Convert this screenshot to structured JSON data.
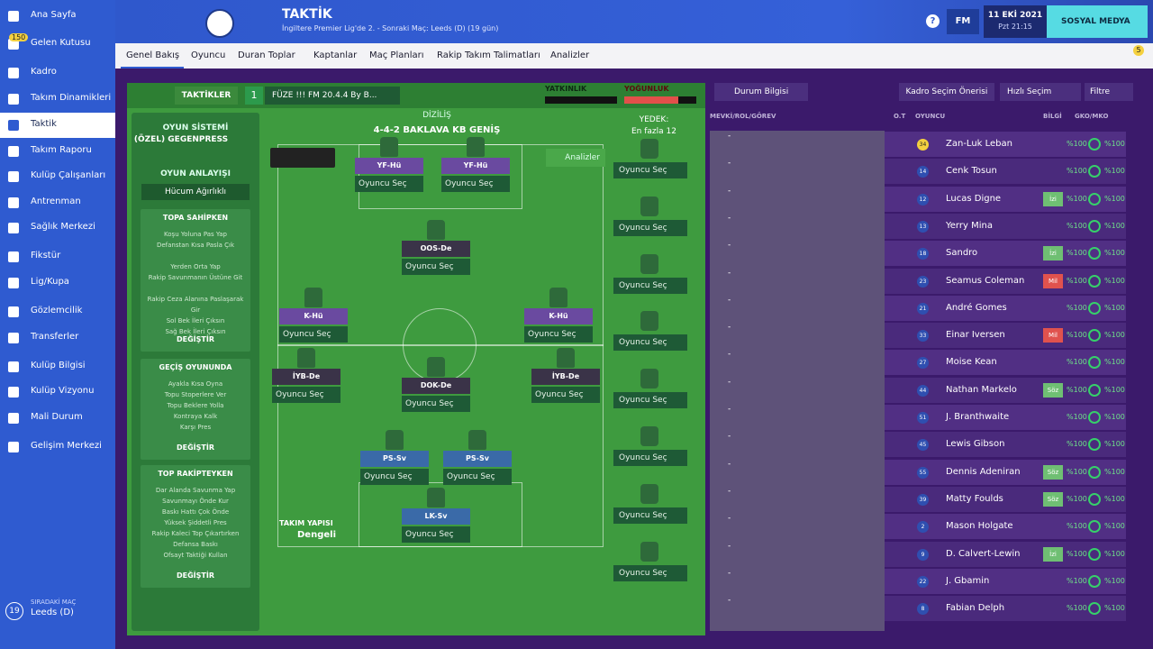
{
  "sidebar": {
    "items": [
      "Ana Sayfa",
      "Gelen Kutusu",
      "Kadro",
      "Takım Dinamikleri",
      "Taktik",
      "Takım Raporu",
      "Kulüp Çalışanları",
      "Antrenman",
      "Sağlık Merkezi",
      "Fikstür",
      "Lig/Kupa",
      "Gözlemcilik",
      "Transferler",
      "Kulüp Bilgisi",
      "Kulüp Vizyonu",
      "Mali Durum",
      "Gelişim Merkezi"
    ],
    "badge": "150",
    "next_label": "SIRADAKİ MAÇ",
    "next_match": "Leeds (D)",
    "next_days": "19"
  },
  "header": {
    "title": "TAKTİK",
    "subtitle": "İngiltere Premier Lig'de 2. - Sonraki Maç: Leeds (D) (19 gün)",
    "help": "?",
    "fm": "FM",
    "date": "11 EKİ 2021",
    "time": "Pzt 21:15",
    "social": "SOSYAL MEDYA",
    "notif": "5"
  },
  "tabs": [
    "Genel Bakış",
    "Oyuncu",
    "Duran Toplar",
    "Kaptanlar",
    "Maç Planları",
    "Rakip Takım Talimatları",
    "Analizler"
  ],
  "tactic_bar": {
    "tactics": "TAKTİKLER",
    "slot": "1",
    "name": "FÜZE !!! FM 20.4.4 By B...",
    "familiarity": "YATKINLIK",
    "intensity": "YOĞUNLUK"
  },
  "left_panel": {
    "system_label": "OYUN SİSTEMİ",
    "system": "(ÖZEL) GEGENPRESS",
    "mentality_label": "OYUN ANLAYIŞI",
    "mentality": "Hücum Ağırlıklı",
    "sections": [
      {
        "title": "TOPA SAHİPKEN",
        "items": [
          "Koşu Yoluna Pas Yap",
          "Defanstan Kısa Pasla Çık",
          "Yerden Orta Yap",
          "Rakip Savunmanın Üstüne Git",
          "Rakip Ceza Alanına Paslaşarak Gir",
          "Sol Bek İleri Çıksın",
          "Sağ Bek İleri Çıksın"
        ],
        "button": "DEĞİŞTİR"
      },
      {
        "title": "GEÇİŞ OYUNUNDA",
        "items": [
          "Ayakla Kısa Oyna",
          "Topu Stoperlere Ver",
          "Topu Beklere Yolla",
          "Kontraya Kalk",
          "Karşı Pres"
        ],
        "button": "DEĞİŞTİR"
      },
      {
        "title": "TOP RAKİPTEYKEN",
        "items": [
          "Dar Alanda Savunma Yap",
          "Savunmayı Önde Kur",
          "Baskı Hattı Çok Önde",
          "Yüksek Şiddetli Pres",
          "Rakip Kaleci Top Çıkartırken",
          "Defansa Baskı",
          "Ofsayt Taktiği Kullan"
        ],
        "button": "DEĞİŞTİR"
      }
    ]
  },
  "pitch": {
    "formation_label": "DİZİLİŞ",
    "formation": "4-4-2 BAKLAVA KB GENİŞ",
    "analysis": "Analizler",
    "structure_label": "TAKIM YAPISI",
    "structure": "Dengeli",
    "positions": [
      {
        "role": "YF-Hü",
        "select": "Oyuncu Seç"
      },
      {
        "role": "YF-Hü",
        "select": "Oyuncu Seç"
      },
      {
        "role": "OOS-De",
        "select": "Oyuncu Seç"
      },
      {
        "role": "K-Hü",
        "select": "Oyuncu Seç"
      },
      {
        "role": "K-Hü",
        "select": "Oyuncu Seç"
      },
      {
        "role": "İYB-De",
        "select": "Oyuncu Seç"
      },
      {
        "role": "DOK-De",
        "select": "Oyuncu Seç"
      },
      {
        "role": "İYB-De",
        "select": "Oyuncu Seç"
      },
      {
        "role": "PS-Sv",
        "select": "Oyuncu Seç"
      },
      {
        "role": "PS-Sv",
        "select": "Oyuncu Seç"
      },
      {
        "role": "LK-Sv",
        "select": "Oyuncu Seç"
      }
    ]
  },
  "subs": {
    "label": "YEDEK:",
    "limit": "En fazla 12",
    "slots": [
      "Oyuncu Seç",
      "Oyuncu Seç",
      "Oyuncu Seç",
      "Oyuncu Seç",
      "Oyuncu Seç",
      "Oyuncu Seç",
      "Oyuncu Seç",
      "Oyuncu Seç"
    ]
  },
  "squad": {
    "view": "Durum Bilgisi",
    "suggest": "Kadro Seçim Önerisi",
    "quick": "Hızlı Seçim",
    "filter": "Filtre",
    "columns": [
      "MEVKİ/ROL/GÖREV",
      "O.T",
      "OYUNCU",
      "BİLGİ",
      "GKO/MKO"
    ],
    "players": [
      {
        "pos": "-",
        "num": "34",
        "name": "Zan-Luk Leban",
        "info": null,
        "gko": "%100",
        "mko": "%100"
      },
      {
        "pos": "-",
        "num": "14",
        "name": "Cenk Tosun",
        "info": null,
        "gko": "%100",
        "mko": "%100"
      },
      {
        "pos": "-",
        "num": "12",
        "name": "Lucas Digne",
        "info": "İzi",
        "gko": "%100",
        "mko": "%100"
      },
      {
        "pos": "-",
        "num": "13",
        "name": "Yerry Mina",
        "info": null,
        "gko": "%100",
        "mko": "%100"
      },
      {
        "pos": "-",
        "num": "18",
        "name": "Sandro",
        "info": "İzi",
        "gko": "%100",
        "mko": "%100"
      },
      {
        "pos": "-",
        "num": "23",
        "name": "Seamus Coleman",
        "info": "Mil",
        "gko": "%100",
        "mko": "%100"
      },
      {
        "pos": "-",
        "num": "21",
        "name": "André Gomes",
        "info": null,
        "gko": "%100",
        "mko": "%100"
      },
      {
        "pos": "-",
        "num": "33",
        "name": "Einar Iversen",
        "info": "Mil",
        "gko": "%100",
        "mko": "%100"
      },
      {
        "pos": "-",
        "num": "27",
        "name": "Moise Kean",
        "info": null,
        "gko": "%100",
        "mko": "%100"
      },
      {
        "pos": "-",
        "num": "44",
        "name": "Nathan Markelo",
        "info": "Söz",
        "gko": "%100",
        "mko": "%100"
      },
      {
        "pos": "-",
        "num": "51",
        "name": "J. Branthwaite",
        "info": null,
        "gko": "%100",
        "mko": "%100"
      },
      {
        "pos": "-",
        "num": "45",
        "name": "Lewis Gibson",
        "info": null,
        "gko": "%100",
        "mko": "%100"
      },
      {
        "pos": "-",
        "num": "55",
        "name": "Dennis Adeniran",
        "info": "Söz",
        "gko": "%100",
        "mko": "%100"
      },
      {
        "pos": "-",
        "num": "39",
        "name": "Matty Foulds",
        "info": "Söz",
        "gko": "%100",
        "mko": "%100"
      },
      {
        "pos": "-",
        "num": "2",
        "name": "Mason Holgate",
        "info": null,
        "gko": "%100",
        "mko": "%100"
      },
      {
        "pos": "-",
        "num": "9",
        "name": "D. Calvert-Lewin",
        "info": "İzi",
        "gko": "%100",
        "mko": "%100"
      },
      {
        "pos": "-",
        "num": "22",
        "name": "J. Gbamin",
        "info": null,
        "gko": "%100",
        "mko": "%100"
      },
      {
        "pos": "-",
        "num": "8",
        "name": "Fabian Delph",
        "info": null,
        "gko": "%100",
        "mko": "%100"
      }
    ]
  }
}
